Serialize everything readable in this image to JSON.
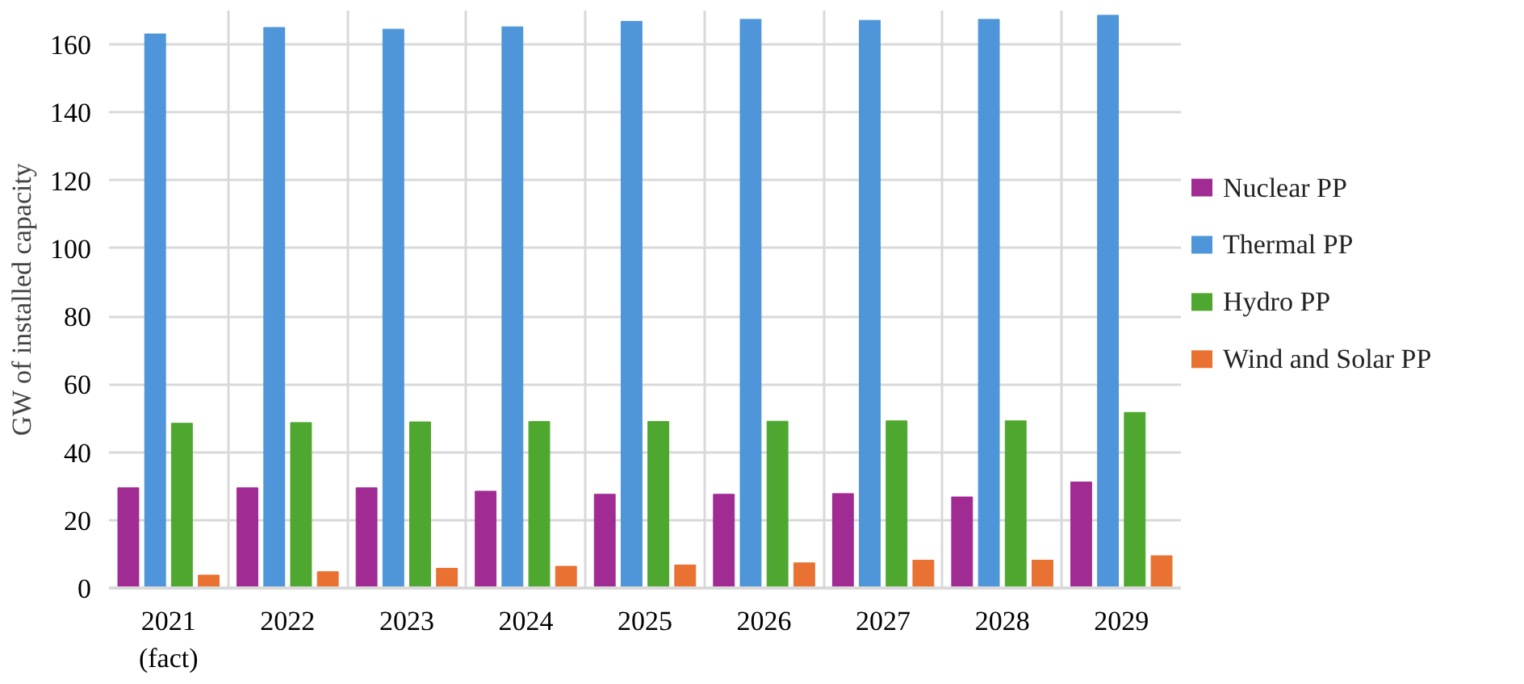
{
  "chart_data": {
    "type": "bar",
    "ylabel": "GW of installed capacity",
    "categories": [
      "2021\n(fact)",
      "2022",
      "2023",
      "2024",
      "2025",
      "2026",
      "2027",
      "2028",
      "2029"
    ],
    "series": [
      {
        "name": "Nuclear PP",
        "color": "#a02b93",
        "values": [
          29.5,
          29.5,
          29.5,
          28.5,
          27.6,
          27.6,
          27.8,
          26.8,
          31.2
        ]
      },
      {
        "name": "Thermal PP",
        "color": "#4e95d9",
        "values": [
          163.1,
          165.0,
          164.5,
          165.2,
          166.8,
          167.4,
          167.1,
          167.4,
          168.6
        ]
      },
      {
        "name": "Hydro PP",
        "color": "#4ea72e",
        "values": [
          48.5,
          48.7,
          48.9,
          49.0,
          49.0,
          49.1,
          49.2,
          49.2,
          51.7
        ]
      },
      {
        "name": "Wind and Solar PP",
        "color": "#e97132",
        "values": [
          3.8,
          4.8,
          5.8,
          6.4,
          6.8,
          7.4,
          8.2,
          8.2,
          9.5
        ]
      }
    ],
    "ylim": [
      0,
      170
    ],
    "yticks": [
      0,
      20,
      40,
      60,
      80,
      100,
      120,
      140,
      160
    ],
    "grid": true,
    "legend": "right"
  }
}
